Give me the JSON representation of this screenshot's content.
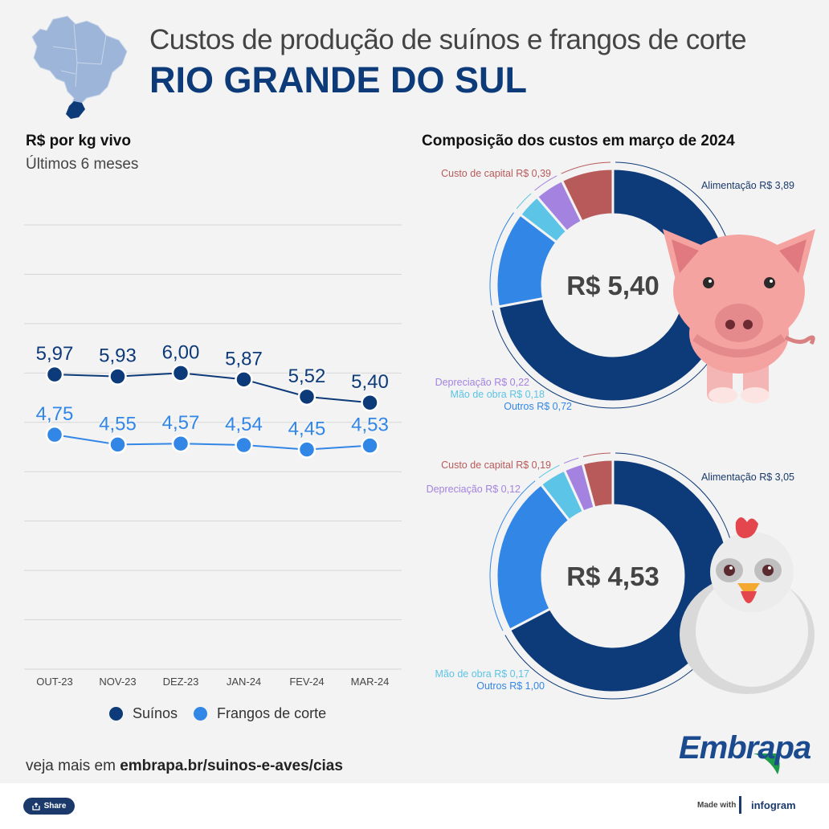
{
  "header": {
    "title_top": "Custos de produção de suínos e frangos de corte",
    "title_main": "RIO GRANDE DO SUL"
  },
  "left_panel": {
    "heading": "R$ por kg vivo",
    "subheading": "Últimos 6 meses"
  },
  "right_panel": {
    "heading": "Composição dos custos em março de 2024"
  },
  "chart_data": [
    {
      "type": "line",
      "title": "R$ por kg vivo",
      "subtitle": "Últimos 6 meses",
      "categories": [
        "OUT-23",
        "NOV-23",
        "DEZ-23",
        "JAN-24",
        "FEV-24",
        "MAR-24"
      ],
      "ylim": [
        0,
        9
      ],
      "grid": true,
      "legend_position": "bottom",
      "series": [
        {
          "name": "Suínos",
          "color": "#0d3a78",
          "values": [
            5.97,
            5.93,
            6.0,
            5.87,
            5.52,
            5.4
          ],
          "labels": [
            "5,97",
            "5,93",
            "6,00",
            "5,87",
            "5,52",
            "5,40"
          ]
        },
        {
          "name": "Frangos de corte",
          "color": "#3287e6",
          "values": [
            4.75,
            4.55,
            4.57,
            4.54,
            4.45,
            4.53
          ],
          "labels": [
            "4,75",
            "4,55",
            "4,57",
            "4,54",
            "4,45",
            "4,53"
          ]
        }
      ]
    },
    {
      "type": "pie",
      "title": "Suínos - composição dos custos em março de 2024",
      "center_label": "R$ 5,40",
      "slices": [
        {
          "name": "Alimentação",
          "value": 3.89,
          "label": "Alimentação R$ 3,89",
          "color": "#0d3a78"
        },
        {
          "name": "Outros",
          "value": 0.72,
          "label": "Outros R$ 0,72",
          "color": "#3287e6"
        },
        {
          "name": "Mão de obra",
          "value": 0.18,
          "label": "Mão de obra R$ 0,18",
          "color": "#5cc4e6"
        },
        {
          "name": "Depreciação",
          "value": 0.22,
          "label": "Depreciação R$ 0,22",
          "color": "#a483e0"
        },
        {
          "name": "Custo de capital",
          "value": 0.39,
          "label": "Custo de capital R$ 0,39",
          "color": "#b85a5a"
        }
      ]
    },
    {
      "type": "pie",
      "title": "Frangos de corte - composição dos custos em março de 2024",
      "center_label": "R$ 4,53",
      "slices": [
        {
          "name": "Alimentação",
          "value": 3.05,
          "label": "Alimentação R$ 3,05",
          "color": "#0d3a78"
        },
        {
          "name": "Outros",
          "value": 1.0,
          "label": "Outros R$ 1,00",
          "color": "#3287e6"
        },
        {
          "name": "Mão de obra",
          "value": 0.17,
          "label": "Mão de obra R$ 0,17",
          "color": "#5cc4e6"
        },
        {
          "name": "Depreciação",
          "value": 0.12,
          "label": "Depreciação R$ 0,12",
          "color": "#a483e0"
        },
        {
          "name": "Custo de capital",
          "value": 0.19,
          "label": "Custo de capital R$ 0,19",
          "color": "#b85a5a"
        }
      ]
    }
  ],
  "footer": {
    "prefix": "veja mais em ",
    "link": "embrapa.br/suinos-e-aves/cias",
    "logo_text": "Embrapa"
  },
  "bottom_bar": {
    "share_label": "Share",
    "made_with": "Made with",
    "infogram_label": "infogram"
  }
}
